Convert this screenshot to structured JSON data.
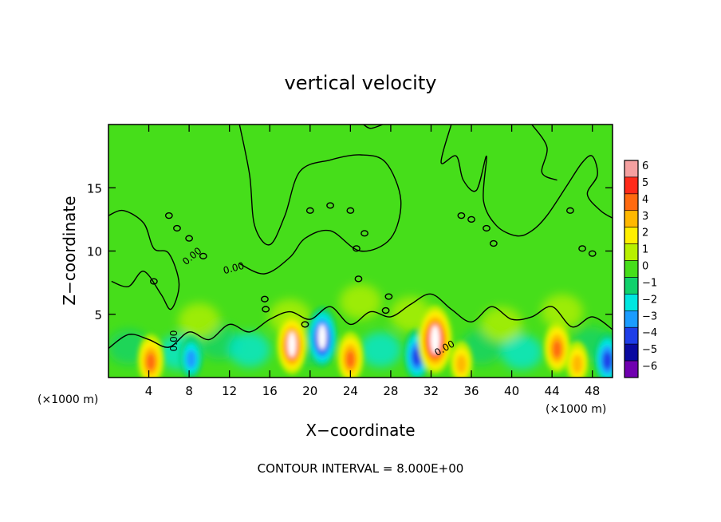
{
  "chart_data": {
    "type": "heatmap",
    "title": "vertical velocity",
    "xlabel": "X−coordinate",
    "ylabel": "Z−coordinate",
    "x_unit_left": "(×1000 m)",
    "x_unit_right": "(×1000 m)",
    "footer": "CONTOUR INTERVAL = 8.000E+00",
    "xlim": [
      0,
      50
    ],
    "ylim": [
      0,
      20
    ],
    "x_ticks": [
      4,
      8,
      12,
      16,
      20,
      24,
      28,
      32,
      36,
      40,
      44,
      48
    ],
    "x_tick_labels": [
      "4",
      "8",
      "12",
      "16",
      "20",
      "24",
      "28",
      "32",
      "36",
      "40",
      "44",
      "48"
    ],
    "y_ticks": [
      5,
      10,
      15
    ],
    "y_tick_labels": [
      "5",
      "10",
      "15"
    ],
    "contour_labels": [
      {
        "text": "0.00",
        "x": 6.8,
        "y": 2.9,
        "angle": -90
      },
      {
        "text": "0.00",
        "x": 8.5,
        "y": 9.4,
        "angle": -40
      },
      {
        "text": "0.00",
        "x": 12.5,
        "y": 8.4,
        "angle": -15
      },
      {
        "text": "0.00",
        "x": 33.5,
        "y": 2.1,
        "angle": -30
      }
    ],
    "colorbar": {
      "levels": [
        6,
        5,
        4,
        3,
        2,
        1,
        0,
        -1,
        -2,
        -3,
        -4,
        -5,
        -6
      ],
      "labels": [
        "6",
        "5",
        "4",
        "3",
        "2",
        "1",
        "0",
        "−1",
        "−2",
        "−3",
        "−4",
        "−5",
        "−6"
      ],
      "colors": [
        "#f4a0a0",
        "#ff2a1a",
        "#ff6a10",
        "#ffb800",
        "#ffef00",
        "#b8f000",
        "#46de1a",
        "#10d26c",
        "#00e6e0",
        "#1a9cff",
        "#1e3ee8",
        "#0a0aa0",
        "#7000b0"
      ]
    },
    "background_color": "#46de1a",
    "features": [
      {
        "type": "updraft",
        "x": 4.2,
        "z": 1.4,
        "w": 4
      },
      {
        "type": "downdraft",
        "x": 8.2,
        "z": 1.6,
        "w": -3
      },
      {
        "type": "updraft",
        "x": 18.2,
        "z": 2.6,
        "w": 5
      },
      {
        "type": "downdraft",
        "x": 21.2,
        "z": 3.2,
        "w": -5
      },
      {
        "type": "updraft",
        "x": 24.0,
        "z": 1.6,
        "w": 4
      },
      {
        "type": "downdraft",
        "x": 30.6,
        "z": 1.8,
        "w": -4
      },
      {
        "type": "updraft",
        "x": 32.4,
        "z": 3.0,
        "w": 6
      },
      {
        "type": "updraft",
        "x": 35.0,
        "z": 1.2,
        "w": 3
      },
      {
        "type": "updraft",
        "x": 44.5,
        "z": 2.4,
        "w": 4
      },
      {
        "type": "updraft",
        "x": 46.5,
        "z": 1.2,
        "w": 3
      },
      {
        "type": "downdraft",
        "x": 49.5,
        "z": 1.5,
        "w": -4
      }
    ]
  }
}
